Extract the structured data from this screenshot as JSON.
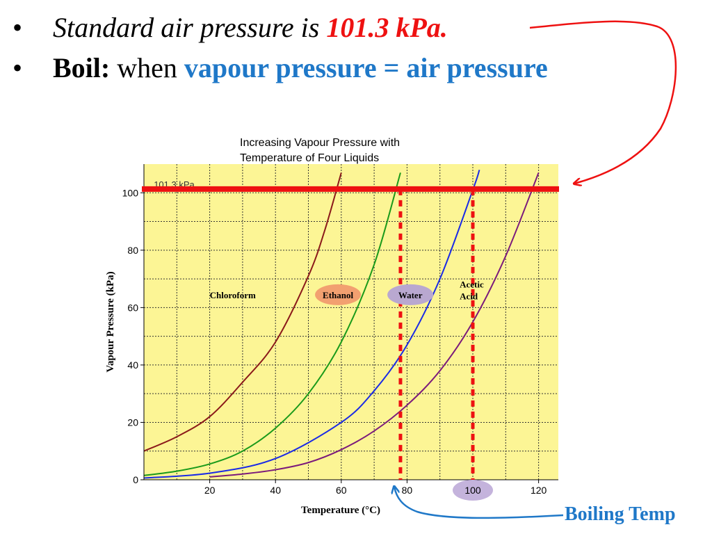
{
  "bullets": {
    "line1_text": "Standard air pressure is ",
    "line1_value": "101.3 kPa.",
    "line2_label": "Boil:",
    "line2_text": " when ",
    "line2_highlight": "vapour pressure = air pressure"
  },
  "callout": {
    "boiling_label": "Boiling Temp"
  },
  "chart_data": {
    "type": "line",
    "title": "Increasing Vapour Pressure with Temperature of Four Liquids",
    "xlabel": "Temperature (°C)",
    "ylabel": "Vapour Pressure (kPa)",
    "xlim": [
      0,
      126
    ],
    "ylim": [
      0,
      110
    ],
    "xticks": [
      20,
      40,
      60,
      80,
      100,
      120
    ],
    "yticks": [
      0,
      20,
      40,
      60,
      80,
      100
    ],
    "grid": true,
    "reference_line": {
      "y": 101.3,
      "label": "101.3 kPa",
      "color": "#ee1111"
    },
    "boiling_markers": [
      {
        "x": 78,
        "color": "#ee1111"
      },
      {
        "x": 100,
        "color": "#ee1111"
      }
    ],
    "series": [
      {
        "name": "Chloroform",
        "color": "#8b1a1a",
        "x": [
          0,
          10,
          20,
          30,
          40,
          50,
          55,
          60
        ],
        "y": [
          10,
          15,
          22,
          34,
          48,
          71,
          87,
          107
        ]
      },
      {
        "name": "Ethanol",
        "color": "#1a9a1a",
        "x": [
          0,
          10,
          20,
          30,
          40,
          50,
          60,
          70,
          78
        ],
        "y": [
          1.5,
          3,
          5.5,
          10,
          18,
          30,
          48,
          75,
          107
        ]
      },
      {
        "name": "Water",
        "color": "#1a2ae6",
        "x": [
          0,
          20,
          40,
          60,
          70,
          80,
          90,
          100,
          102
        ],
        "y": [
          0.6,
          2.3,
          7.4,
          20,
          31,
          47,
          70,
          101,
          108
        ]
      },
      {
        "name": "Acetic Acid",
        "color": "#7b1a7b",
        "x": [
          20,
          30,
          40,
          50,
          60,
          70,
          80,
          90,
          100,
          110,
          120
        ],
        "y": [
          1,
          2,
          3.5,
          6,
          10.5,
          17,
          26,
          38,
          55,
          78,
          107
        ]
      }
    ]
  }
}
